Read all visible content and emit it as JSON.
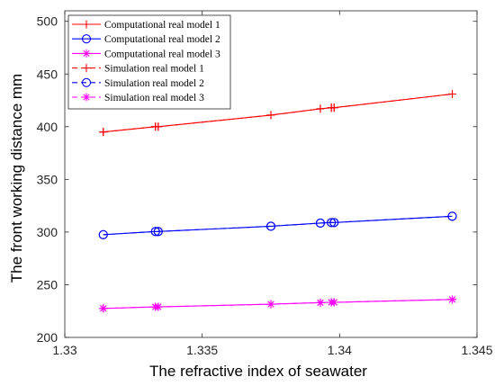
{
  "chart_data": {
    "type": "line",
    "xlabel": "The refractive index of seawater",
    "ylabel": "The front working distance mm",
    "xlim": [
      1.33,
      1.345
    ],
    "ylim": [
      200,
      510
    ],
    "xticks": [
      1.33,
      1.335,
      1.34,
      1.345
    ],
    "xtick_labels": [
      "1.33",
      "1.335",
      "1.34",
      "1.345"
    ],
    "yticks": [
      200,
      250,
      300,
      350,
      400,
      450,
      500
    ],
    "ytick_labels": [
      "200",
      "250",
      "300",
      "350",
      "400",
      "450",
      "500"
    ],
    "grid": false,
    "legend_position": "top-left",
    "x": [
      1.3314,
      1.3333,
      1.3334,
      1.3375,
      1.3393,
      1.3397,
      1.3398,
      1.3441
    ],
    "series": [
      {
        "name": "Computational real model 1",
        "color": "#ff0000",
        "marker": "plus",
        "dash": "solid",
        "values": [
          395,
          400,
          400,
          411,
          417,
          418,
          418,
          431
        ]
      },
      {
        "name": "Computational real model 2",
        "color": "#0000ff",
        "marker": "circle",
        "dash": "solid",
        "values": [
          297.5,
          300.5,
          300.5,
          305.5,
          308.5,
          309,
          309,
          315
        ]
      },
      {
        "name": "Computational real model 3",
        "color": "#ff00ff",
        "marker": "asterisk",
        "dash": "solid",
        "values": [
          227.5,
          229,
          229,
          231.5,
          233,
          233.3,
          233.3,
          236
        ]
      },
      {
        "name": "Simulation real model 1",
        "color": "#ff0000",
        "marker": "plus",
        "dash": "dashed",
        "values": [
          395,
          400,
          400,
          411,
          417,
          418,
          418,
          431
        ]
      },
      {
        "name": "Simulation real model 2",
        "color": "#0000ff",
        "marker": "circle",
        "dash": "dashed",
        "values": [
          297.5,
          300.5,
          300.5,
          305.5,
          308.5,
          309,
          309,
          315
        ]
      },
      {
        "name": "Simulation real model 3",
        "color": "#ff00ff",
        "marker": "asterisk",
        "dash": "dashed",
        "values": [
          227.5,
          229,
          229,
          231.5,
          233,
          233.3,
          233.3,
          236
        ]
      }
    ]
  }
}
